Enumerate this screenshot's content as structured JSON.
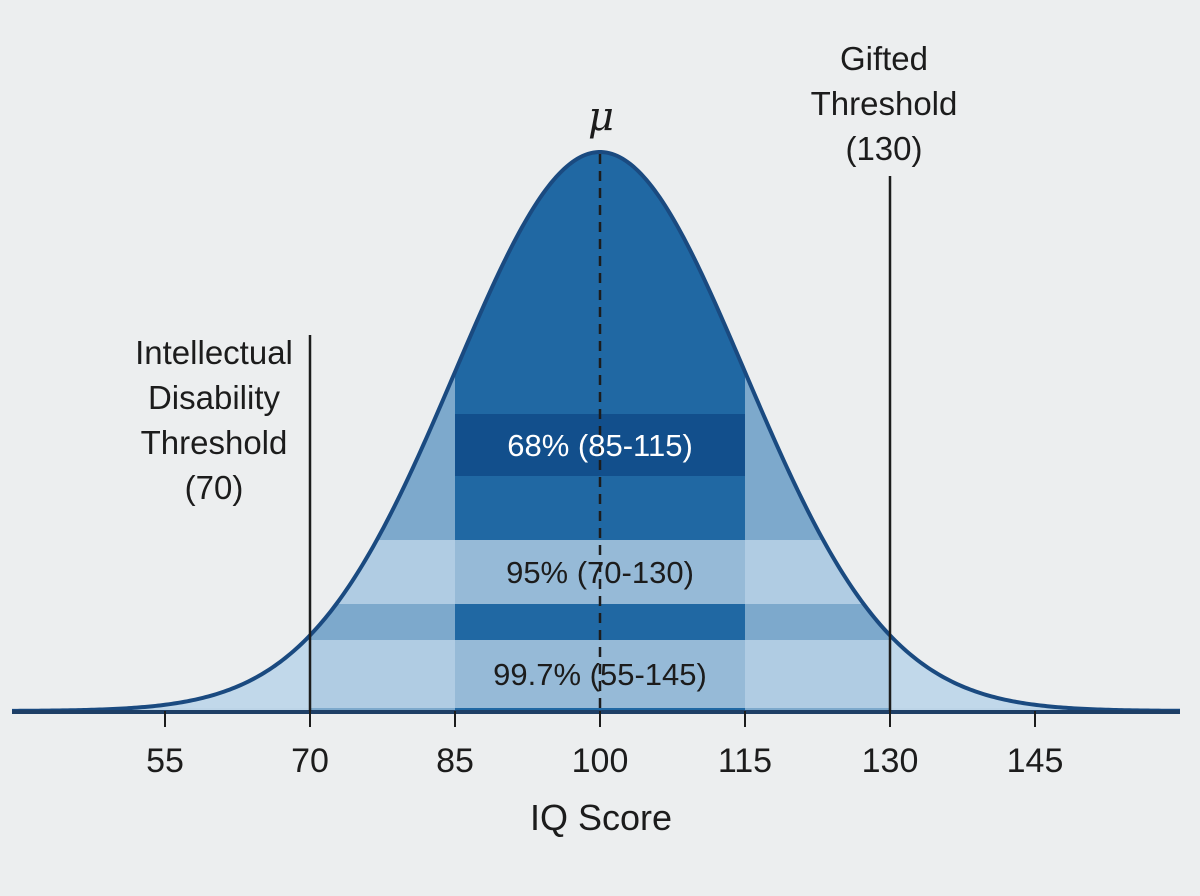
{
  "chart_data": {
    "type": "area",
    "title": "",
    "xlabel": "IQ Score",
    "ylabel": "",
    "xlim": [
      45,
      155
    ],
    "mean": 100,
    "sd": 15,
    "mean_label": "μ",
    "x_ticks": [
      55,
      70,
      85,
      100,
      115,
      130,
      145
    ],
    "x_tick_labels": [
      "55",
      "70",
      "85",
      "100",
      "115",
      "130",
      "145"
    ],
    "bands": [
      {
        "label": "68% (85-115)",
        "from": 85,
        "to": 115,
        "percent": 68
      },
      {
        "label": "95% (70-130)",
        "from": 70,
        "to": 130,
        "percent": 95
      },
      {
        "label": "99.7% (55-145)",
        "from": 55,
        "to": 145,
        "percent": 99.7
      }
    ],
    "thresholds": [
      {
        "x": 70,
        "lines": [
          "Intellectual",
          "Disability",
          "Threshold",
          "(70)"
        ]
      },
      {
        "x": 130,
        "lines": [
          "Gifted",
          "Threshold",
          "(130)"
        ]
      }
    ],
    "grid": false,
    "colors": {
      "curve_stroke": "#1a4a80",
      "inner": "#2068a3",
      "middle": "#7da9cc",
      "outer": "#bcd4e7",
      "band_68": "#124f8c",
      "band_95": "#c4d9eb",
      "band_997": "#c4d9eb",
      "band_text_light": "#ffffff",
      "band_text_dark": "#1c1c1c",
      "axis": "#1e3f66"
    }
  }
}
